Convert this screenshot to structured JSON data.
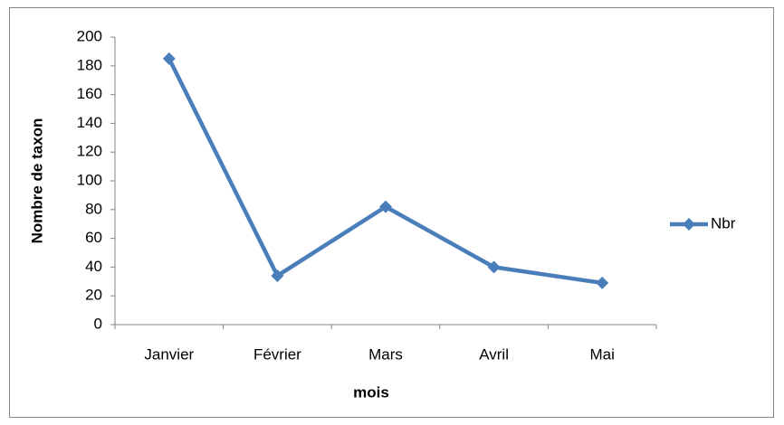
{
  "chart_data": {
    "type": "line",
    "x_label": "mois",
    "y_label": "Nombre de taxon",
    "categories": [
      "Janvier",
      "Février",
      "Mars",
      "Avril",
      "Mai"
    ],
    "series": [
      {
        "name": "Nbr",
        "color": "#4a7ebb",
        "values": [
          185,
          34,
          82,
          40,
          29
        ]
      }
    ],
    "ylim": [
      0,
      200
    ],
    "yticks": [
      0,
      20,
      40,
      60,
      80,
      100,
      120,
      140,
      160,
      180,
      200
    ],
    "grid": false,
    "legend": "right"
  }
}
